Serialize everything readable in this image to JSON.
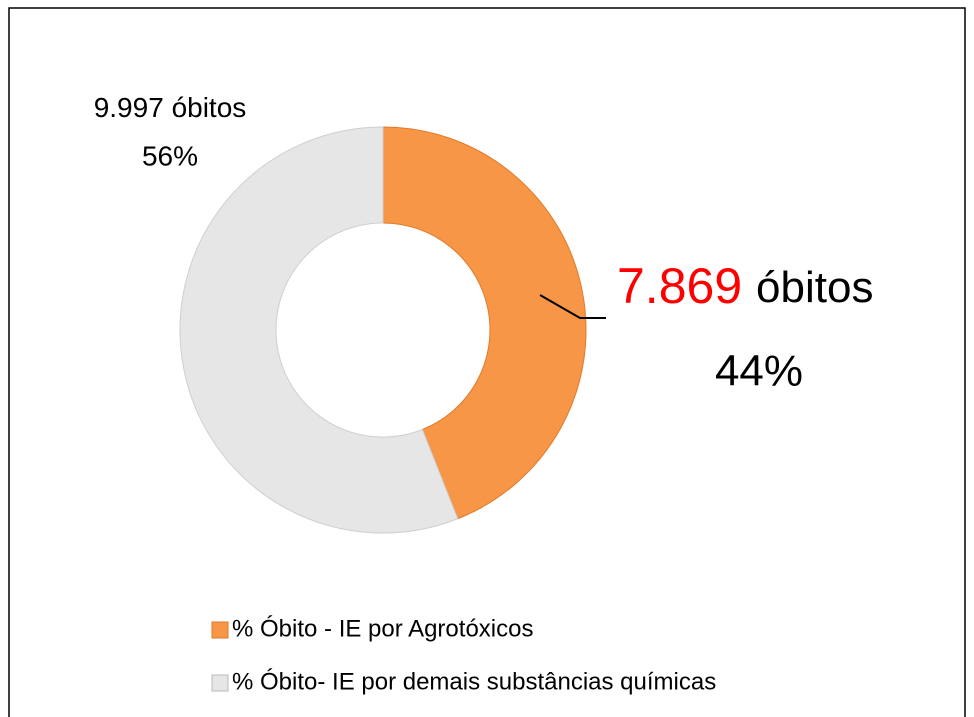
{
  "chart_data": {
    "type": "donut",
    "categories": [
      "% Óbito - IE por Agrotóxicos",
      "% Óbito- IE por demais substâncias químicas"
    ],
    "values": [
      44,
      56
    ],
    "value_labels": [
      "44%",
      "56%"
    ],
    "counts": [
      7869,
      9997
    ],
    "count_labels": [
      "7.869",
      "9.997"
    ],
    "count_unit": "óbitos",
    "colors": [
      "#f79646",
      "#e6e6e6"
    ],
    "legend": "bottom"
  }
}
